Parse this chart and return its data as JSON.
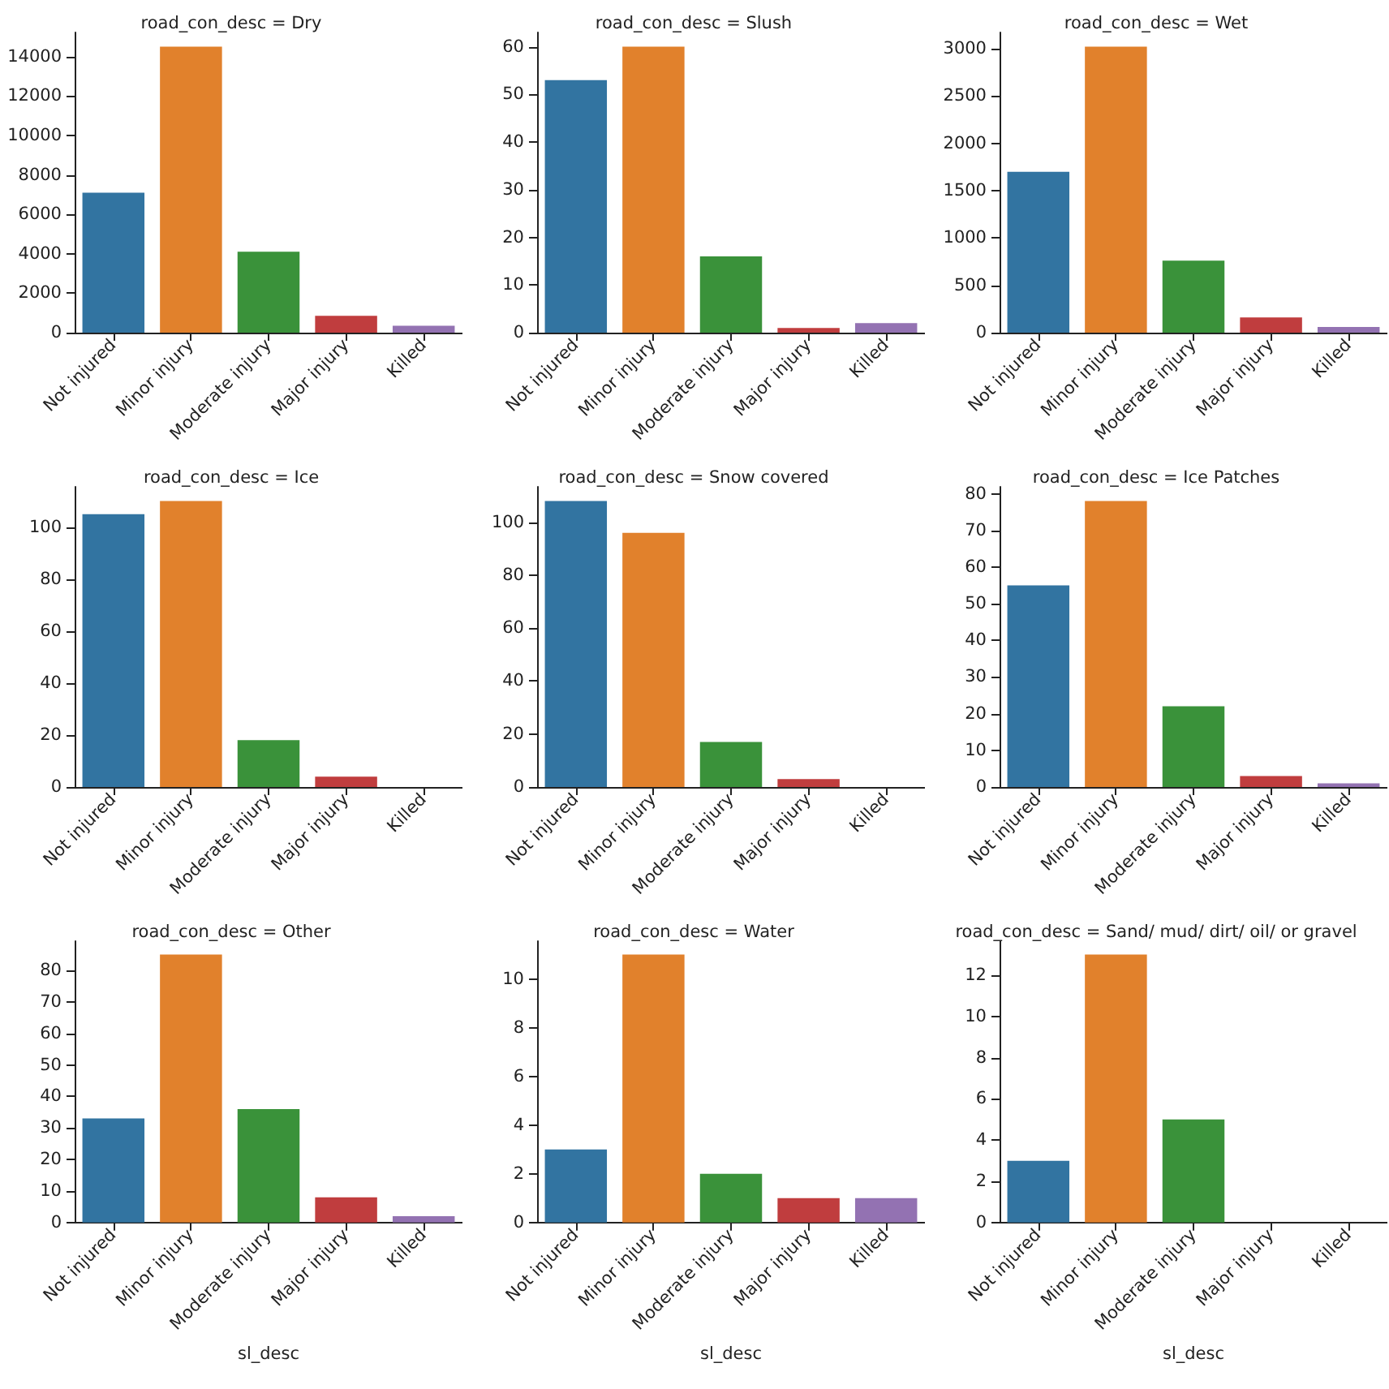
{
  "chart_data": [
    {
      "type": "bar",
      "title": "road_con_desc = Dry",
      "categories": [
        "Not injured",
        "Minor injury",
        "Moderate injury",
        "Major injury",
        "Killed"
      ],
      "values": [
        7100,
        14500,
        4100,
        850,
        350
      ],
      "colors": [
        "#3274a1",
        "#e1812c",
        "#3a923a",
        "#c03d3e",
        "#9372b2"
      ],
      "ylim": [
        0,
        15225
      ],
      "yticks": [
        0,
        2000,
        4000,
        6000,
        8000,
        10000,
        12000,
        14000
      ]
    },
    {
      "type": "bar",
      "title": "road_con_desc = Slush",
      "categories": [
        "Not injured",
        "Minor injury",
        "Moderate injury",
        "Major injury",
        "Killed"
      ],
      "values": [
        53,
        60,
        16,
        1,
        2
      ],
      "colors": [
        "#3274a1",
        "#e1812c",
        "#3a923a",
        "#c03d3e",
        "#9372b2"
      ],
      "ylim": [
        0,
        63
      ],
      "yticks": [
        0,
        10,
        20,
        30,
        40,
        50,
        60
      ]
    },
    {
      "type": "bar",
      "title": "road_con_desc = Wet",
      "categories": [
        "Not injured",
        "Minor injury",
        "Moderate injury",
        "Major injury",
        "Killed"
      ],
      "values": [
        1700,
        3020,
        760,
        160,
        60
      ],
      "colors": [
        "#3274a1",
        "#e1812c",
        "#3a923a",
        "#c03d3e",
        "#9372b2"
      ],
      "ylim": [
        0,
        3171
      ],
      "yticks": [
        0,
        500,
        1000,
        1500,
        2000,
        2500,
        3000
      ]
    },
    {
      "type": "bar",
      "title": "road_con_desc = Ice",
      "categories": [
        "Not injured",
        "Minor injury",
        "Moderate injury",
        "Major injury",
        "Killed"
      ],
      "values": [
        105,
        110,
        18,
        4,
        0
      ],
      "colors": [
        "#3274a1",
        "#e1812c",
        "#3a923a",
        "#c03d3e",
        "#9372b2"
      ],
      "ylim": [
        0,
        115.5
      ],
      "yticks": [
        0,
        20,
        40,
        60,
        80,
        100
      ]
    },
    {
      "type": "bar",
      "title": "road_con_desc = Snow covered",
      "categories": [
        "Not injured",
        "Minor injury",
        "Moderate injury",
        "Major injury",
        "Killed"
      ],
      "values": [
        108,
        96,
        17,
        3,
        0
      ],
      "colors": [
        "#3274a1",
        "#e1812c",
        "#3a923a",
        "#c03d3e",
        "#9372b2"
      ],
      "ylim": [
        0,
        113.4
      ],
      "yticks": [
        0,
        20,
        40,
        60,
        80,
        100
      ]
    },
    {
      "type": "bar",
      "title": "road_con_desc = Ice Patches",
      "categories": [
        "Not injured",
        "Minor injury",
        "Moderate injury",
        "Major injury",
        "Killed"
      ],
      "values": [
        55,
        78,
        22,
        3,
        1
      ],
      "colors": [
        "#3274a1",
        "#e1812c",
        "#3a923a",
        "#c03d3e",
        "#9372b2"
      ],
      "ylim": [
        0,
        81.9
      ],
      "yticks": [
        0,
        10,
        20,
        30,
        40,
        50,
        60,
        70,
        80
      ]
    },
    {
      "type": "bar",
      "title": "road_con_desc = Other",
      "xlabel": "sl_desc",
      "categories": [
        "Not injured",
        "Minor injury",
        "Moderate injury",
        "Major injury",
        "Killed"
      ],
      "values": [
        33,
        85,
        36,
        8,
        2
      ],
      "colors": [
        "#3274a1",
        "#e1812c",
        "#3a923a",
        "#c03d3e",
        "#9372b2"
      ],
      "ylim": [
        0,
        89.25
      ],
      "yticks": [
        0,
        10,
        20,
        30,
        40,
        50,
        60,
        70,
        80
      ]
    },
    {
      "type": "bar",
      "title": "road_con_desc = Water",
      "xlabel": "sl_desc",
      "categories": [
        "Not injured",
        "Minor injury",
        "Moderate injury",
        "Major injury",
        "Killed"
      ],
      "values": [
        3,
        11,
        2,
        1,
        1
      ],
      "colors": [
        "#3274a1",
        "#e1812c",
        "#3a923a",
        "#c03d3e",
        "#9372b2"
      ],
      "ylim": [
        0,
        11.55
      ],
      "yticks": [
        0,
        2,
        4,
        6,
        8,
        10
      ]
    },
    {
      "type": "bar",
      "title": "road_con_desc = Sand/ mud/ dirt/ oil/ or gravel",
      "xlabel": "sl_desc",
      "categories": [
        "Not injured",
        "Minor injury",
        "Moderate injury",
        "Major injury",
        "Killed"
      ],
      "values": [
        3,
        13,
        5,
        0,
        0
      ],
      "colors": [
        "#3274a1",
        "#e1812c",
        "#3a923a",
        "#c03d3e",
        "#9372b2"
      ],
      "ylim": [
        0,
        13.65
      ],
      "yticks": [
        0,
        2,
        4,
        6,
        8,
        10,
        12
      ]
    }
  ]
}
